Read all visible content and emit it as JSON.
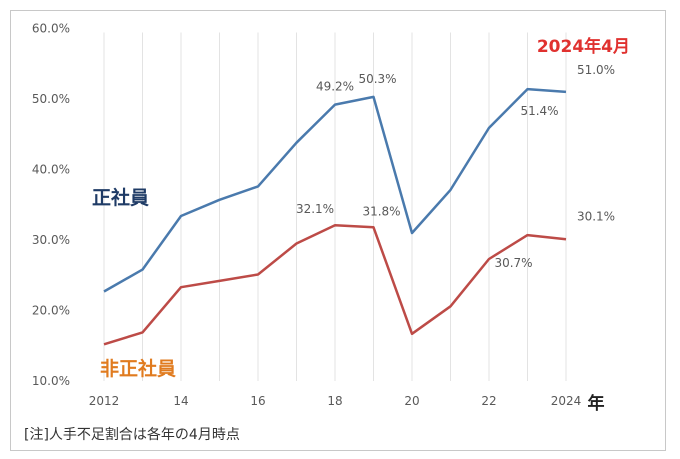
{
  "chart_data": {
    "type": "line",
    "x": [
      2012,
      2013,
      2014,
      2015,
      2016,
      2017,
      2018,
      2019,
      2020,
      2021,
      2022,
      2023,
      2024
    ],
    "x_tick_labels": [
      {
        "x": 2012,
        "label": "2012"
      },
      {
        "x": 2014,
        "label": "14"
      },
      {
        "x": 2016,
        "label": "16"
      },
      {
        "x": 2018,
        "label": "18"
      },
      {
        "x": 2020,
        "label": "20"
      },
      {
        "x": 2022,
        "label": "22"
      },
      {
        "x": 2024,
        "label": "2024"
      }
    ],
    "y_tick_labels": [
      "10.0%",
      "20.0%",
      "30.0%",
      "40.0%",
      "50.0%",
      "60.0%"
    ],
    "y_ticks": [
      10,
      20,
      30,
      40,
      50,
      60
    ],
    "ylim": [
      10,
      60
    ],
    "xlabel": "年",
    "annotation": "2024年4月",
    "series": [
      {
        "name": "正社員",
        "color": "#4a7aad",
        "values": [
          22.7,
          25.8,
          33.4,
          35.7,
          37.6,
          43.8,
          49.2,
          50.3,
          31.0,
          37.1,
          45.9,
          51.4,
          51.0
        ],
        "labels": [
          {
            "x": 2018,
            "text": "49.2%"
          },
          {
            "x": 2019,
            "text": "50.3%"
          },
          {
            "x": 2023,
            "text": "51.4%"
          },
          {
            "x": 2024,
            "text": "51.0%"
          }
        ]
      },
      {
        "name": "非正社員",
        "color": "#bd4b47",
        "values": [
          15.2,
          16.9,
          23.3,
          24.2,
          25.1,
          29.5,
          32.1,
          31.8,
          16.7,
          20.6,
          27.3,
          30.7,
          30.1
        ],
        "labels": [
          {
            "x": 2018,
            "text": "32.1%"
          },
          {
            "x": 2019,
            "text": "31.8%"
          },
          {
            "x": 2023,
            "text": "30.7%"
          },
          {
            "x": 2024,
            "text": "30.1%"
          }
        ]
      }
    ],
    "grid": "vertical",
    "name_colors": {
      "正社員": "#1f3b66",
      "非正社員": "#e07b1f",
      "annotation": "#e0312f"
    }
  },
  "note": "[注]人手不足割合は各年の4月時点"
}
